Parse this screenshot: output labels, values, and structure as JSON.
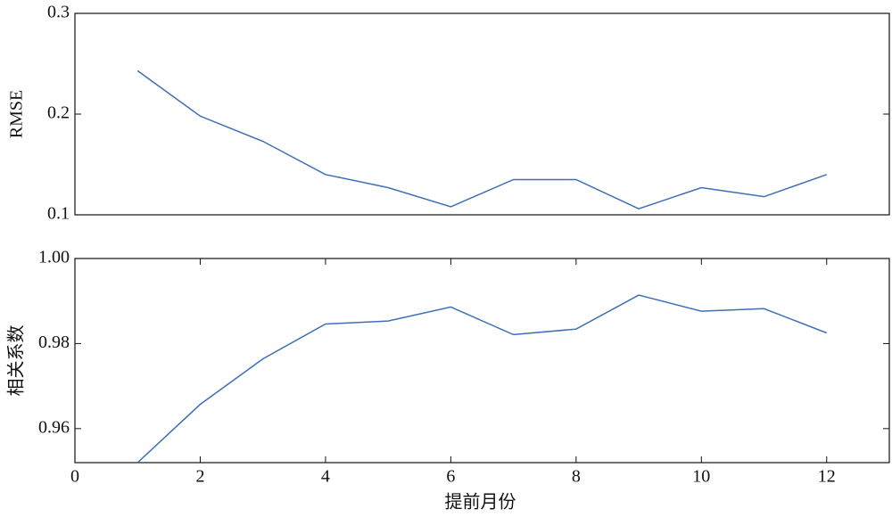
{
  "chart_data": [
    {
      "type": "line",
      "ylabel": "RMSE",
      "x": [
        1,
        2,
        3,
        4,
        5,
        6,
        7,
        8,
        9,
        10,
        11,
        12
      ],
      "series": [
        {
          "color": "#3d6fb6",
          "values": [
            0.243,
            0.198,
            0.173,
            0.14,
            0.127,
            0.108,
            0.135,
            0.135,
            0.106,
            0.127,
            0.118,
            0.14
          ]
        }
      ],
      "xlim": [
        0,
        13
      ],
      "ylim": [
        0.1,
        0.3
      ],
      "yticks": [
        0.1,
        0.2,
        0.3
      ]
    },
    {
      "type": "line",
      "xlabel": "提前月份",
      "ylabel": "相关系数",
      "x": [
        1,
        2,
        3,
        4,
        5,
        6,
        7,
        8,
        9,
        10,
        11,
        12
      ],
      "series": [
        {
          "color": "#3d6fb6",
          "values": [
            0.952,
            0.9657,
            0.9764,
            0.9846,
            0.9853,
            0.9886,
            0.9821,
            0.9834,
            0.9914,
            0.9876,
            0.9882,
            0.9825
          ]
        }
      ],
      "xlim": [
        0,
        13
      ],
      "ylim": [
        0.952,
        1.0
      ],
      "xticks": [
        0,
        2,
        4,
        6,
        8,
        10,
        12
      ],
      "yticks": [
        {
          "value": 0.96,
          "label": "0.96"
        },
        {
          "value": 0.98,
          "label": "0.98"
        },
        {
          "value": 1.0,
          "label": "1.00"
        }
      ]
    }
  ]
}
